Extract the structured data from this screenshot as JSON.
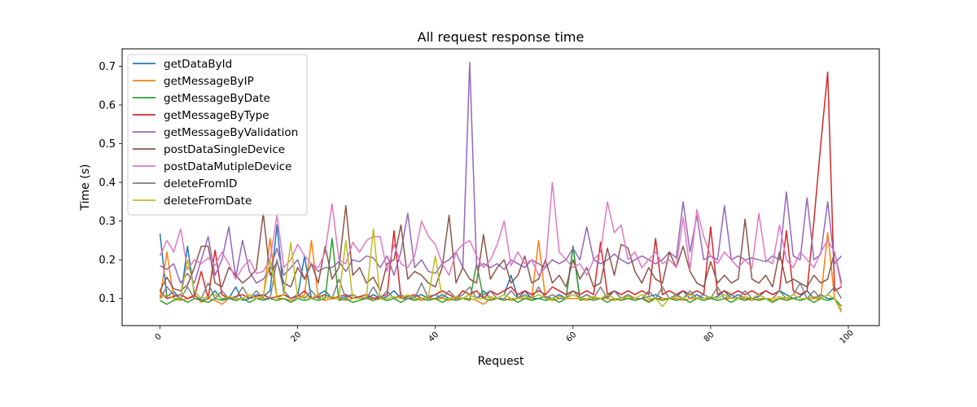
{
  "chart_data": {
    "type": "line",
    "title": "All request response time",
    "xlabel": "Request",
    "ylabel": "Time (s)",
    "xlim": [
      -5.5,
      104.5
    ],
    "ylim": [
      0.03,
      0.745
    ],
    "x_ticks": [
      0,
      20,
      40,
      60,
      80,
      100
    ],
    "y_ticks": [
      0.1,
      0.2,
      0.3,
      0.4,
      0.5,
      0.6,
      0.7
    ],
    "y_tick_labels": [
      "0.1",
      "0.2",
      "0.3",
      "0.4",
      "0.5",
      "0.6",
      "0.7"
    ],
    "grid": false,
    "legend_position": "upper-left",
    "n_points": 100,
    "series": [
      {
        "name": "getDataById",
        "color": "#1f77b4",
        "values": [
          0.268,
          0.105,
          0.118,
          0.098,
          0.235,
          0.11,
          0.095,
          0.1,
          0.12,
          0.098,
          0.1,
          0.13,
          0.095,
          0.1,
          0.11,
          0.105,
          0.12,
          0.29,
          0.11,
          0.1,
          0.105,
          0.21,
          0.1,
          0.11,
          0.12,
          0.1,
          0.1,
          0.105,
          0.11,
          0.1,
          0.1,
          0.11,
          0.1,
          0.105,
          0.12,
          0.1,
          0.1,
          0.105,
          0.11,
          0.1,
          0.1,
          0.11,
          0.1,
          0.105,
          0.1,
          0.11,
          0.1,
          0.12,
          0.1,
          0.1,
          0.11,
          0.16,
          0.1,
          0.12,
          0.1,
          0.1,
          0.105,
          0.1,
          0.11,
          0.1,
          0.235,
          0.1,
          0.11,
          0.1,
          0.1,
          0.105,
          0.12,
          0.1,
          0.11,
          0.1,
          0.1,
          0.105,
          0.11,
          0.1,
          0.1,
          0.105,
          0.12,
          0.1,
          0.11,
          0.1,
          0.1,
          0.105,
          0.12,
          0.1,
          0.11,
          0.1,
          0.1,
          0.105,
          0.12,
          0.11,
          0.12,
          0.11,
          0.1,
          0.105,
          0.12,
          0.1,
          0.11,
          0.1,
          0.1,
          0.065
        ]
      },
      {
        "name": "getMessageByIP",
        "color": "#ff7f0e",
        "values": [
          0.1,
          0.22,
          0.1,
          0.095,
          0.1,
          0.11,
          0.09,
          0.1,
          0.095,
          0.085,
          0.1,
          0.095,
          0.1,
          0.11,
          0.1,
          0.1,
          0.255,
          0.1,
          0.1,
          0.095,
          0.1,
          0.11,
          0.25,
          0.1,
          0.095,
          0.1,
          0.1,
          0.095,
          0.1,
          0.105,
          0.1,
          0.1,
          0.1,
          0.095,
          0.1,
          0.105,
          0.1,
          0.1,
          0.095,
          0.1,
          0.1,
          0.1,
          0.095,
          0.1,
          0.1,
          0.1,
          0.095,
          0.085,
          0.1,
          0.1,
          0.1,
          0.095,
          0.1,
          0.1,
          0.1,
          0.25,
          0.1,
          0.095,
          0.1,
          0.1,
          0.1,
          0.1,
          0.095,
          0.1,
          0.1,
          0.1,
          0.095,
          0.1,
          0.1,
          0.1,
          0.1,
          0.095,
          0.1,
          0.1,
          0.1,
          0.1,
          0.095,
          0.1,
          0.1,
          0.1,
          0.1,
          0.095,
          0.1,
          0.1,
          0.1,
          0.1,
          0.095,
          0.1,
          0.1,
          0.095,
          0.1,
          0.1,
          0.1,
          0.095,
          0.1,
          0.1,
          0.1,
          0.27,
          0.1,
          0.07
        ]
      },
      {
        "name": "getMessageByDate",
        "color": "#2ca02c",
        "values": [
          0.095,
          0.085,
          0.095,
          0.1,
          0.09,
          0.1,
          0.095,
          0.09,
          0.1,
          0.095,
          0.1,
          0.095,
          0.1,
          0.09,
          0.1,
          0.095,
          0.1,
          0.095,
          0.1,
          0.09,
          0.1,
          0.095,
          0.1,
          0.095,
          0.1,
          0.255,
          0.095,
          0.1,
          0.09,
          0.095,
          0.1,
          0.095,
          0.1,
          0.095,
          0.1,
          0.09,
          0.1,
          0.095,
          0.1,
          0.095,
          0.1,
          0.09,
          0.1,
          0.095,
          0.1,
          0.095,
          0.19,
          0.1,
          0.095,
          0.1,
          0.095,
          0.1,
          0.09,
          0.1,
          0.095,
          0.1,
          0.095,
          0.1,
          0.09,
          0.1,
          0.235,
          0.095,
          0.1,
          0.095,
          0.1,
          0.09,
          0.1,
          0.095,
          0.1,
          0.095,
          0.1,
          0.09,
          0.1,
          0.095,
          0.1,
          0.095,
          0.1,
          0.09,
          0.1,
          0.095,
          0.1,
          0.095,
          0.1,
          0.09,
          0.1,
          0.095,
          0.1,
          0.095,
          0.1,
          0.09,
          0.1,
          0.095,
          0.1,
          0.095,
          0.1,
          0.09,
          0.1,
          0.095,
          0.1,
          0.08
        ]
      },
      {
        "name": "getMessageByType",
        "color": "#d62728",
        "values": [
          0.12,
          0.1,
          0.105,
          0.11,
          0.1,
          0.105,
          0.17,
          0.1,
          0.225,
          0.11,
          0.1,
          0.105,
          0.11,
          0.1,
          0.105,
          0.11,
          0.1,
          0.105,
          0.11,
          0.1,
          0.105,
          0.12,
          0.1,
          0.105,
          0.11,
          0.1,
          0.105,
          0.11,
          0.1,
          0.105,
          0.11,
          0.1,
          0.105,
          0.11,
          0.275,
          0.1,
          0.105,
          0.11,
          0.1,
          0.105,
          0.11,
          0.12,
          0.11,
          0.1,
          0.12,
          0.11,
          0.12,
          0.1,
          0.12,
          0.11,
          0.12,
          0.13,
          0.11,
          0.12,
          0.11,
          0.12,
          0.11,
          0.13,
          0.12,
          0.11,
          0.12,
          0.11,
          0.12,
          0.11,
          0.245,
          0.11,
          0.12,
          0.11,
          0.12,
          0.11,
          0.12,
          0.11,
          0.255,
          0.11,
          0.12,
          0.11,
          0.12,
          0.11,
          0.12,
          0.11,
          0.285,
          0.11,
          0.12,
          0.11,
          0.12,
          0.11,
          0.12,
          0.11,
          0.12,
          0.11,
          0.12,
          0.275,
          0.12,
          0.11,
          0.12,
          0.3,
          0.5,
          0.685,
          0.12,
          0.13
        ]
      },
      {
        "name": "getMessageByValidation",
        "color": "#9467bd",
        "values": [
          0.185,
          0.175,
          0.19,
          0.14,
          0.165,
          0.14,
          0.2,
          0.26,
          0.16,
          0.2,
          0.285,
          0.155,
          0.25,
          0.17,
          0.14,
          0.15,
          0.175,
          0.23,
          0.16,
          0.18,
          0.2,
          0.15,
          0.19,
          0.17,
          0.18,
          0.18,
          0.195,
          0.17,
          0.2,
          0.195,
          0.21,
          0.205,
          0.18,
          0.21,
          0.16,
          0.22,
          0.32,
          0.18,
          0.2,
          0.17,
          0.165,
          0.19,
          0.2,
          0.22,
          0.18,
          0.71,
          0.18,
          0.19,
          0.18,
          0.19,
          0.175,
          0.2,
          0.19,
          0.18,
          0.2,
          0.19,
          0.18,
          0.2,
          0.19,
          0.2,
          0.23,
          0.2,
          0.285,
          0.2,
          0.19,
          0.2,
          0.215,
          0.2,
          0.19,
          0.2,
          0.21,
          0.2,
          0.19,
          0.2,
          0.22,
          0.205,
          0.35,
          0.22,
          0.315,
          0.2,
          0.21,
          0.2,
          0.34,
          0.2,
          0.21,
          0.2,
          0.205,
          0.2,
          0.195,
          0.21,
          0.2,
          0.375,
          0.21,
          0.2,
          0.36,
          0.2,
          0.215,
          0.35,
          0.19,
          0.21
        ]
      },
      {
        "name": "postDataSingleDevice",
        "color": "#8c564b",
        "values": [
          0.12,
          0.155,
          0.125,
          0.12,
          0.135,
          0.18,
          0.235,
          0.235,
          0.14,
          0.13,
          0.18,
          0.16,
          0.14,
          0.155,
          0.175,
          0.32,
          0.16,
          0.195,
          0.14,
          0.13,
          0.18,
          0.15,
          0.19,
          0.14,
          0.235,
          0.15,
          0.18,
          0.34,
          0.16,
          0.18,
          0.14,
          0.155,
          0.12,
          0.19,
          0.2,
          0.29,
          0.15,
          0.17,
          0.16,
          0.14,
          0.13,
          0.18,
          0.315,
          0.14,
          0.18,
          0.15,
          0.14,
          0.265,
          0.15,
          0.18,
          0.2,
          0.14,
          0.16,
          0.21,
          0.14,
          0.15,
          0.2,
          0.14,
          0.16,
          0.13,
          0.2,
          0.15,
          0.18,
          0.13,
          0.14,
          0.23,
          0.16,
          0.24,
          0.23,
          0.17,
          0.14,
          0.18,
          0.15,
          0.14,
          0.22,
          0.18,
          0.235,
          0.17,
          0.14,
          0.13,
          0.195,
          0.14,
          0.16,
          0.14,
          0.15,
          0.305,
          0.15,
          0.14,
          0.16,
          0.13,
          0.22,
          0.14,
          0.15,
          0.14,
          0.13,
          0.16,
          0.14,
          0.15,
          0.22,
          0.14
        ]
      },
      {
        "name": "postDataMutipleDevice",
        "color": "#e377c2",
        "values": [
          0.21,
          0.25,
          0.22,
          0.28,
          0.175,
          0.2,
          0.19,
          0.205,
          0.185,
          0.22,
          0.19,
          0.15,
          0.18,
          0.2,
          0.165,
          0.17,
          0.2,
          0.315,
          0.18,
          0.2,
          0.24,
          0.21,
          0.19,
          0.18,
          0.22,
          0.345,
          0.2,
          0.19,
          0.245,
          0.22,
          0.25,
          0.26,
          0.26,
          0.17,
          0.24,
          0.19,
          0.18,
          0.21,
          0.3,
          0.26,
          0.24,
          0.19,
          0.16,
          0.22,
          0.24,
          0.25,
          0.21,
          0.18,
          0.2,
          0.24,
          0.3,
          0.185,
          0.22,
          0.19,
          0.2,
          0.16,
          0.18,
          0.4,
          0.22,
          0.2,
          0.18,
          0.19,
          0.16,
          0.2,
          0.22,
          0.35,
          0.27,
          0.29,
          0.2,
          0.22,
          0.18,
          0.2,
          0.22,
          0.19,
          0.2,
          0.18,
          0.31,
          0.175,
          0.33,
          0.26,
          0.21,
          0.19,
          0.22,
          0.2,
          0.18,
          0.2,
          0.18,
          0.32,
          0.2,
          0.19,
          0.29,
          0.2,
          0.18,
          0.22,
          0.2,
          0.18,
          0.22,
          0.25,
          0.22,
          0.13
        ]
      },
      {
        "name": "deleteFromID",
        "color": "#7f7f7f",
        "values": [
          0.1,
          0.13,
          0.11,
          0.1,
          0.13,
          0.1,
          0.1,
          0.14,
          0.1,
          0.12,
          0.1,
          0.1,
          0.13,
          0.1,
          0.12,
          0.1,
          0.1,
          0.2,
          0.12,
          0.1,
          0.11,
          0.1,
          0.12,
          0.1,
          0.11,
          0.1,
          0.15,
          0.1,
          0.11,
          0.1,
          0.1,
          0.13,
          0.1,
          0.12,
          0.1,
          0.11,
          0.1,
          0.1,
          0.14,
          0.1,
          0.11,
          0.1,
          0.12,
          0.1,
          0.11,
          0.13,
          0.1,
          0.11,
          0.12,
          0.1,
          0.1,
          0.12,
          0.1,
          0.11,
          0.1,
          0.13,
          0.1,
          0.11,
          0.1,
          0.1,
          0.12,
          0.1,
          0.11,
          0.1,
          0.13,
          0.1,
          0.12,
          0.1,
          0.11,
          0.1,
          0.1,
          0.12,
          0.1,
          0.13,
          0.1,
          0.11,
          0.1,
          0.12,
          0.1,
          0.11,
          0.1,
          0.13,
          0.1,
          0.11,
          0.1,
          0.12,
          0.1,
          0.11,
          0.1,
          0.1,
          0.12,
          0.1,
          0.11,
          0.14,
          0.1,
          0.12,
          0.1,
          0.11,
          0.13,
          0.1
        ]
      },
      {
        "name": "deleteFromDate",
        "color": "#bcbd22",
        "values": [
          0.1,
          0.11,
          0.1,
          0.1,
          0.2,
          0.12,
          0.1,
          0.105,
          0.11,
          0.1,
          0.105,
          0.1,
          0.1,
          0.11,
          0.1,
          0.105,
          0.2,
          0.1,
          0.11,
          0.245,
          0.1,
          0.105,
          0.1,
          0.11,
          0.1,
          0.105,
          0.1,
          0.25,
          0.1,
          0.1,
          0.105,
          0.28,
          0.1,
          0.1,
          0.105,
          0.1,
          0.11,
          0.1,
          0.1,
          0.105,
          0.21,
          0.1,
          0.1,
          0.105,
          0.1,
          0.11,
          0.1,
          0.1,
          0.105,
          0.1,
          0.11,
          0.1,
          0.1,
          0.105,
          0.1,
          0.11,
          0.1,
          0.1,
          0.105,
          0.1,
          0.11,
          0.1,
          0.1,
          0.105,
          0.1,
          0.11,
          0.1,
          0.1,
          0.105,
          0.1,
          0.11,
          0.1,
          0.1,
          0.08,
          0.1,
          0.105,
          0.1,
          0.11,
          0.1,
          0.1,
          0.105,
          0.1,
          0.11,
          0.1,
          0.1,
          0.105,
          0.1,
          0.11,
          0.1,
          0.1,
          0.105,
          0.1,
          0.11,
          0.1,
          0.1,
          0.105,
          0.1,
          0.11,
          0.1,
          0.065
        ]
      }
    ]
  }
}
